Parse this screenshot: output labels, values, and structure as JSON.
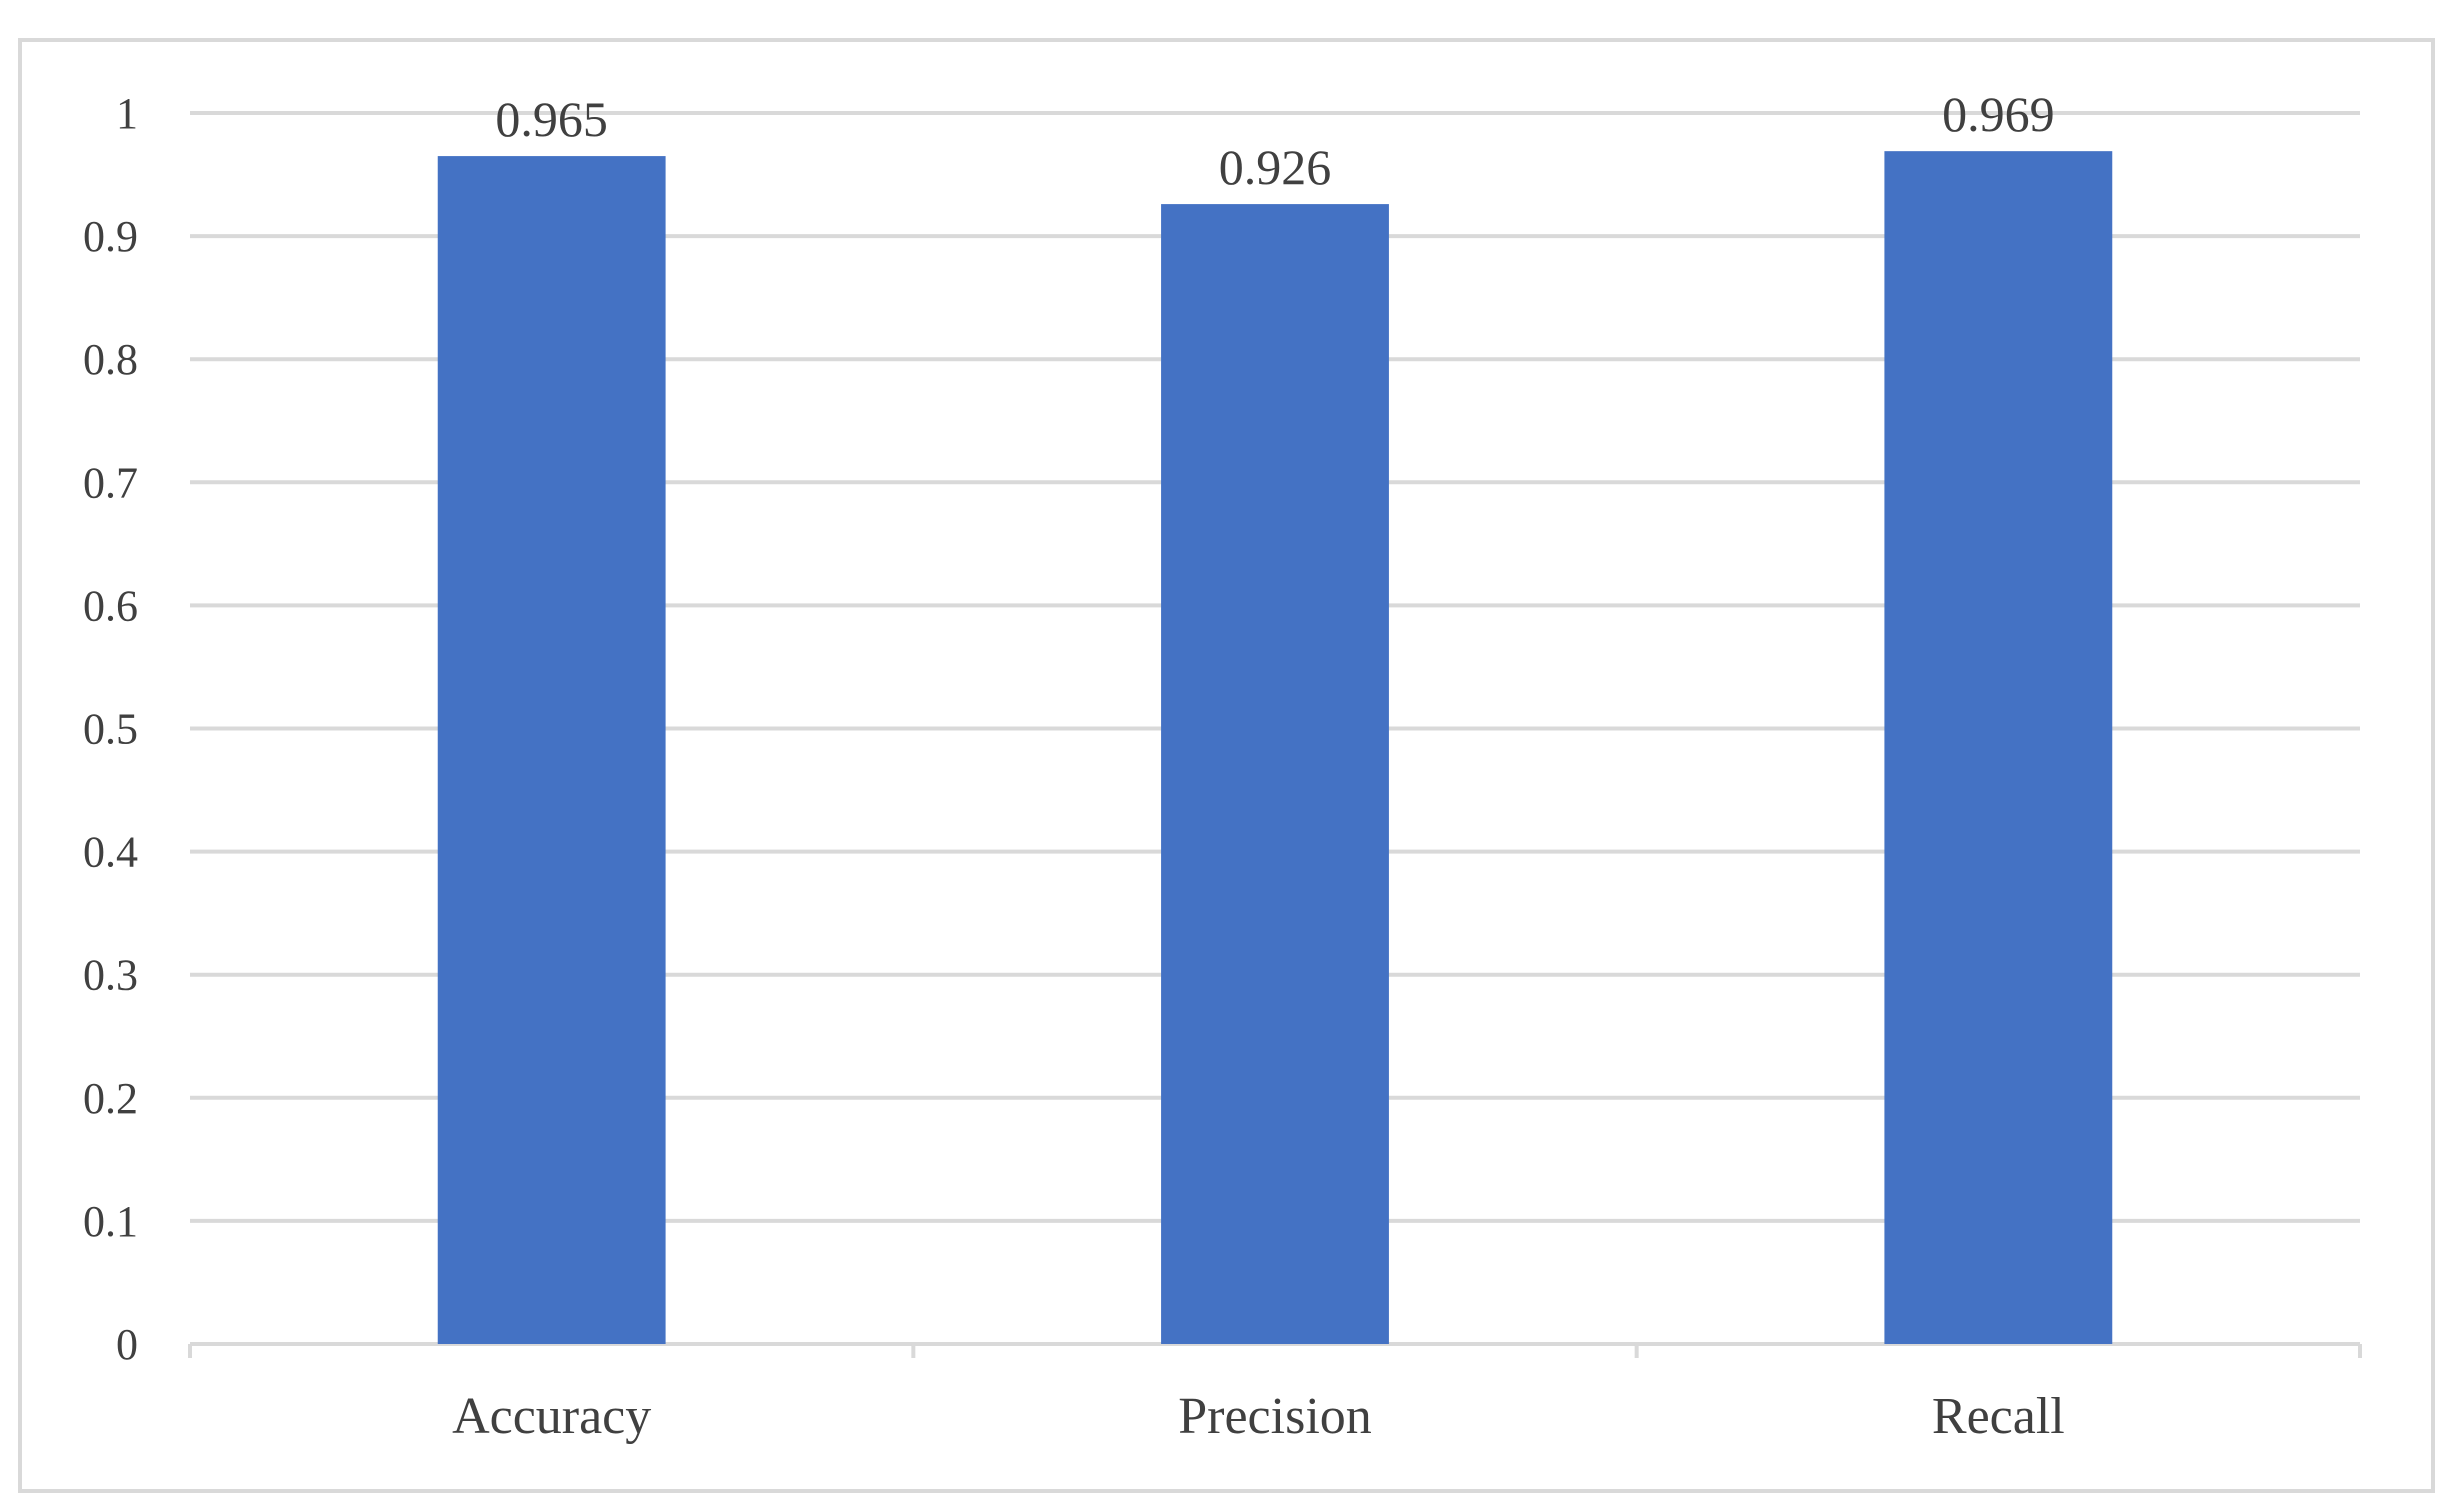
{
  "chart_data": {
    "type": "bar",
    "categories": [
      "Accuracy",
      "Precision",
      "Recall"
    ],
    "values": [
      0.965,
      0.926,
      0.969
    ],
    "data_labels": [
      "0.965",
      "0.926",
      "0.969"
    ],
    "y_ticks": [
      "0",
      "0.1",
      "0.2",
      "0.3",
      "0.4",
      "0.5",
      "0.6",
      "0.7",
      "0.8",
      "0.9",
      "1"
    ],
    "title": "",
    "xlabel": "",
    "ylabel": "",
    "ylim": [
      0,
      1
    ],
    "grid": true,
    "legend": "none",
    "bar_color": "#4472c4",
    "grid_color": "#d9d9d9",
    "text_color": "#404040"
  }
}
